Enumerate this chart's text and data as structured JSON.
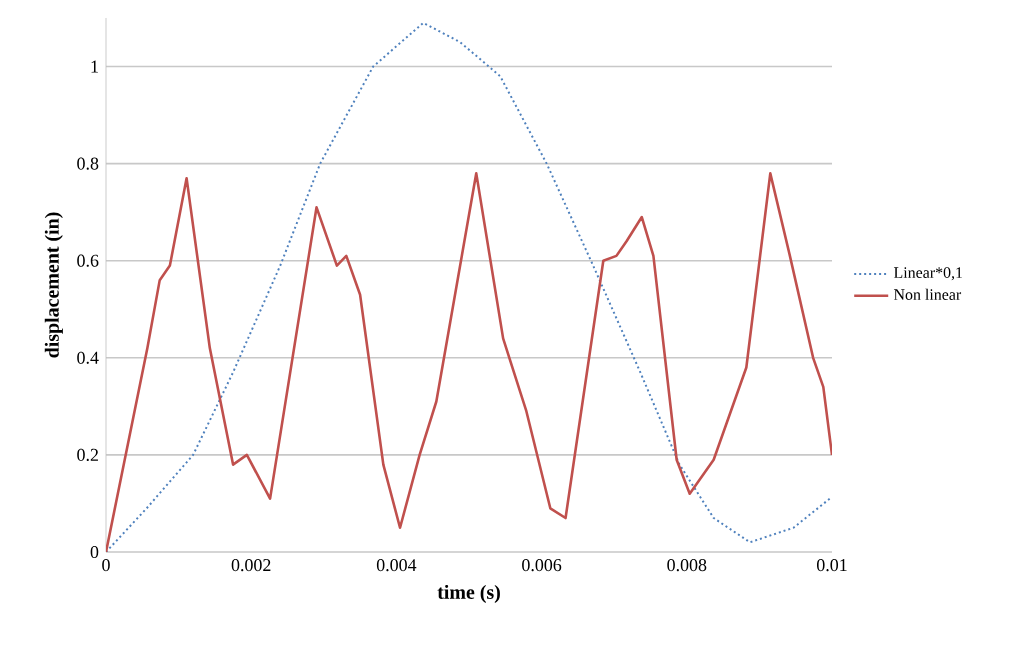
{
  "chart_data": {
    "type": "line",
    "xlabel": "time (s)",
    "ylabel": "displacement (in)",
    "xlim": [
      0,
      0.01
    ],
    "xticks": [
      0,
      0.002,
      0.004,
      0.006,
      0.008,
      0.01
    ],
    "ylim": [
      0,
      1.1
    ],
    "yticks": [
      0,
      0.2,
      0.4,
      0.6,
      0.8,
      1
    ],
    "grid": "y",
    "legend": "right",
    "marker": "none",
    "series": [
      {
        "name": "Linear*0,1",
        "color": "#4f81bd",
        "line_style": "dotted",
        "x": [
          0,
          0.00056,
          0.0012,
          0.00175,
          0.0024,
          0.00295,
          0.00368,
          0.00437,
          0.00488,
          0.00543,
          0.00607,
          0.00671,
          0.00736,
          0.0079,
          0.00837,
          0.00887,
          0.00947,
          0.00997
        ],
        "values": [
          0,
          0.09,
          0.2,
          0.37,
          0.59,
          0.8,
          1.0,
          1.09,
          1.05,
          0.98,
          0.8,
          0.59,
          0.37,
          0.18,
          0.07,
          0.02,
          0.05,
          0.11
        ]
      },
      {
        "name": "Non linear",
        "color": "#c0504d",
        "line_style": "solid",
        "x": [
          0,
          0.00057,
          0.00074,
          0.00088,
          0.00111,
          0.00143,
          0.00175,
          0.00194,
          0.00226,
          0.0029,
          0.00318,
          0.00331,
          0.0035,
          0.00382,
          0.00405,
          0.00432,
          0.00455,
          0.0051,
          0.00547,
          0.00579,
          0.00612,
          0.00633,
          0.00685,
          0.00703,
          0.00717,
          0.00738,
          0.00754,
          0.00786,
          0.00804,
          0.00837,
          0.00882,
          0.00915,
          0.00942,
          0.00974,
          0.00988,
          0.01
        ],
        "values": [
          0,
          0.42,
          0.56,
          0.59,
          0.77,
          0.42,
          0.18,
          0.2,
          0.11,
          0.71,
          0.59,
          0.61,
          0.53,
          0.18,
          0.05,
          0.2,
          0.31,
          0.78,
          0.44,
          0.29,
          0.09,
          0.07,
          0.6,
          0.61,
          0.64,
          0.69,
          0.61,
          0.19,
          0.12,
          0.19,
          0.38,
          0.78,
          0.61,
          0.4,
          0.34,
          0.2
        ]
      }
    ]
  }
}
